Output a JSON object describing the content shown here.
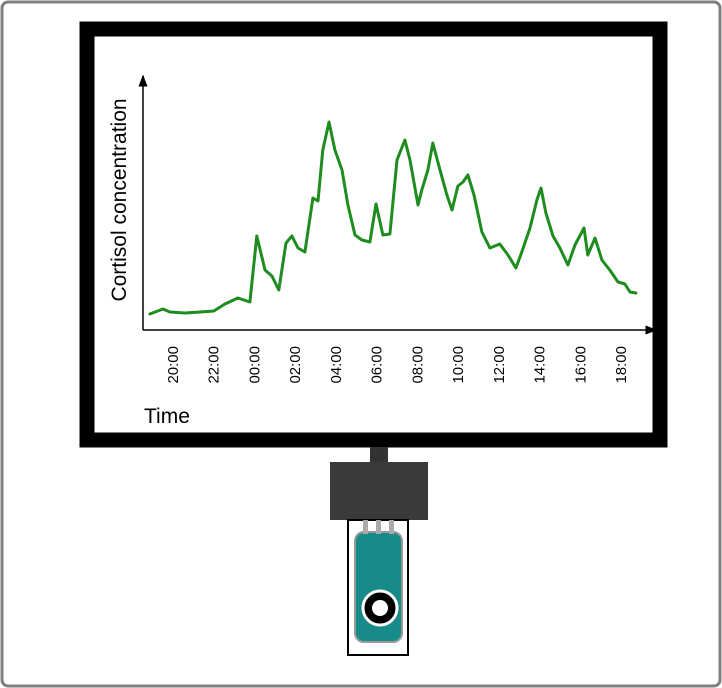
{
  "chart_data": {
    "type": "line",
    "y_label": "Cortisol concentration",
    "x_label": "Time",
    "color": "#1e8c1e",
    "x": [
      18.82,
      19.46,
      19.8,
      20.54,
      21.28,
      21.96,
      22.5,
      23.14,
      23.73,
      24.07,
      24.47,
      24.81,
      25.15,
      25.5,
      25.79,
      26.09,
      26.43,
      26.82,
      27.07,
      27.31,
      27.61,
      27.9,
      28.25,
      28.54,
      28.89,
      29.23,
      29.62,
      29.92,
      30.26,
      30.6,
      30.95,
      31.34,
      31.59,
      31.98,
      32.17,
      32.47,
      32.71,
      33.06,
      33.4,
      33.65,
      33.94,
      34.19,
      34.43,
      34.73,
      35.12,
      35.51,
      36.0,
      36.4,
      36.79,
      37.08,
      37.48,
      37.82,
      38.02,
      38.26,
      38.61,
      38.95,
      39.34,
      39.69,
      40.13,
      40.32,
      40.67,
      41.01,
      41.4,
      41.8,
      42.14,
      42.39,
      42.68
    ],
    "values": [
      6.4,
      8.4,
      7.2,
      6.8,
      7.2,
      7.6,
      10.4,
      12.8,
      11.2,
      37.6,
      24,
      21.6,
      16,
      34.8,
      37.6,
      32.8,
      31.2,
      52.8,
      51.6,
      72,
      83.2,
      72,
      64,
      50,
      38,
      36,
      35.2,
      50.4,
      38,
      38.4,
      68,
      76,
      68,
      50,
      56,
      64,
      74.8,
      64,
      54,
      48,
      57.6,
      59.2,
      62,
      54,
      39.2,
      32.8,
      34.4,
      30,
      24.8,
      31.2,
      40.8,
      52,
      56.8,
      46.8,
      37.6,
      32.8,
      26,
      34,
      40.8,
      30,
      36.8,
      28,
      24,
      19.2,
      18.4,
      15.2,
      14.8
    ],
    "xlim": [
      18.5,
      43.5
    ],
    "ylim": [
      0,
      102
    ],
    "xticks": [
      {
        "value": 20,
        "label": "20:00"
      },
      {
        "value": 22,
        "label": "22:00"
      },
      {
        "value": 24,
        "label": "00:00"
      },
      {
        "value": 26,
        "label": "02:00"
      },
      {
        "value": 28,
        "label": "04:00"
      },
      {
        "value": 30,
        "label": "06:00"
      },
      {
        "value": 32,
        "label": "08:00"
      },
      {
        "value": 34,
        "label": "10:00"
      },
      {
        "value": 36,
        "label": "12:00"
      },
      {
        "value": 38,
        "label": "14:00"
      },
      {
        "value": 40,
        "label": "16:00"
      },
      {
        "value": 42,
        "label": "18:00"
      }
    ]
  }
}
